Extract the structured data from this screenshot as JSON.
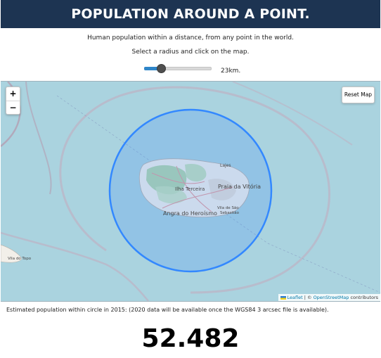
{
  "header": {
    "title": "POPULATION AROUND A POINT."
  },
  "intro": {
    "subtitle": "Human population within a distance, from any point in the world.",
    "instruction": "Select a radius and click on the map."
  },
  "radius_control": {
    "value_label": "23km.",
    "value_km": 23
  },
  "map": {
    "zoom_in": "+",
    "zoom_out": "−",
    "reset_label": "Reset Map",
    "labels": {
      "praia": "Praia da Vitória",
      "lajes": "Lajes",
      "ilha": "Ilha Terceira",
      "angra": "Angra do Heroísmo",
      "vila_sao_1": "Vila de São",
      "vila_sao_2": "Sebastião",
      "topo": "Vila do Topo"
    },
    "attribution": {
      "leaflet": "Leaflet",
      "sep": " | © ",
      "osm": "OpenStreetMap",
      "tail": " contributors"
    },
    "colors": {
      "water": "#aad3df",
      "circle": "#3388ff",
      "land": "#f2efe9"
    }
  },
  "estimate_text": "Estimated population within circle in 2015: (2020 data will be available once the WGS84 3 arcsec file is available).",
  "population_result": "52.482"
}
